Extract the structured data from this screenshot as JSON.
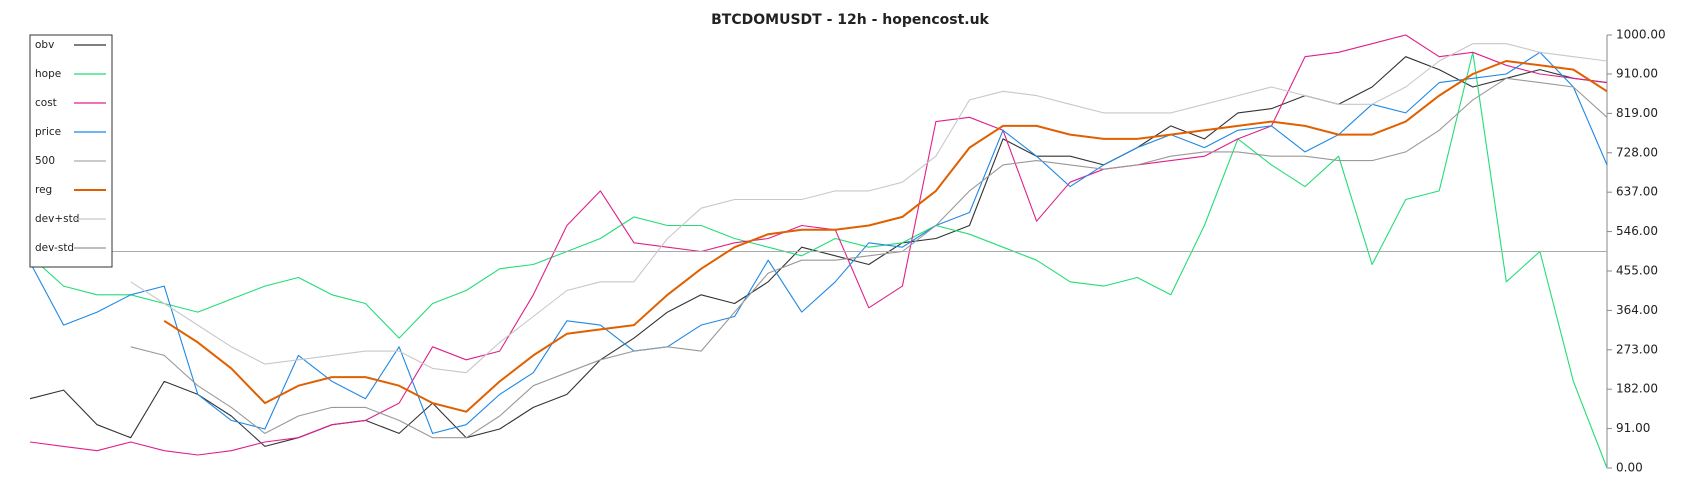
{
  "chart_data": {
    "type": "line",
    "title": "BTCDOMUSDT - 12h - hopencost.uk",
    "categories": [
      null,
      null,
      null,
      null,
      null,
      null,
      null,
      null,
      null,
      null,
      null,
      null,
      null,
      null,
      null,
      null,
      null,
      null,
      null,
      null,
      null,
      null,
      null,
      null,
      null,
      null,
      null,
      null,
      null,
      null,
      null,
      null,
      null,
      null,
      null,
      null,
      null,
      null,
      null,
      null,
      null,
      null,
      null,
      null,
      null,
      null,
      null,
      null
    ],
    "ylim": [
      0,
      1000
    ],
    "yticks": [
      {
        "value": 0,
        "label": "0.00"
      },
      {
        "value": 91,
        "label": "91.00"
      },
      {
        "value": 182,
        "label": "182.00"
      },
      {
        "value": 273,
        "label": "273.00"
      },
      {
        "value": 364,
        "label": "364.00"
      },
      {
        "value": 455,
        "label": "455.00"
      },
      {
        "value": 546,
        "label": "546.00"
      },
      {
        "value": 637,
        "label": "637.00"
      },
      {
        "value": 728,
        "label": "728.00"
      },
      {
        "value": 819,
        "label": "819.00"
      },
      {
        "value": 910,
        "label": "910.00"
      },
      {
        "value": 1000,
        "label": "1000.00"
      }
    ],
    "y_axis_side": "right",
    "legend": "upper left",
    "series": [
      {
        "name": "obv",
        "color": "#333333",
        "values": [
          160,
          180,
          100,
          70,
          200,
          170,
          120,
          50,
          70,
          100,
          110,
          80,
          150,
          70,
          90,
          140,
          170,
          250,
          300,
          360,
          400,
          380,
          430,
          510,
          490,
          470,
          520,
          530,
          560,
          760,
          720,
          720,
          700,
          740,
          790,
          760,
          820,
          830,
          860,
          840,
          880,
          950,
          920,
          880,
          900,
          920,
          900,
          890
        ]
      },
      {
        "name": "hope",
        "color": "#22dd77",
        "values": [
          490,
          420,
          400,
          400,
          380,
          360,
          390,
          420,
          440,
          400,
          380,
          300,
          380,
          410,
          460,
          470,
          500,
          530,
          580,
          560,
          560,
          530,
          510,
          490,
          530,
          510,
          520,
          560,
          540,
          510,
          480,
          430,
          420,
          440,
          400,
          560,
          760,
          700,
          650,
          720,
          470,
          620,
          640,
          960,
          430,
          500,
          200,
          0
        ]
      },
      {
        "name": "cost",
        "color": "#e0208a",
        "values": [
          60,
          50,
          40,
          60,
          40,
          30,
          40,
          60,
          70,
          100,
          110,
          150,
          280,
          250,
          270,
          400,
          560,
          640,
          520,
          510,
          500,
          520,
          530,
          560,
          550,
          370,
          420,
          800,
          810,
          780,
          570,
          660,
          690,
          700,
          710,
          720,
          760,
          790,
          950,
          960,
          980,
          1000,
          950,
          960,
          930,
          910,
          900,
          890
        ]
      },
      {
        "name": "price",
        "color": "#1e88e5",
        "values": [
          475,
          330,
          360,
          400,
          420,
          170,
          110,
          90,
          260,
          200,
          160,
          280,
          80,
          100,
          170,
          220,
          340,
          330,
          270,
          280,
          330,
          350,
          480,
          360,
          430,
          520,
          510,
          560,
          590,
          780,
          720,
          650,
          700,
          740,
          770,
          740,
          780,
          790,
          730,
          770,
          840,
          820,
          890,
          900,
          910,
          960,
          880,
          700
        ]
      },
      {
        "name": "500",
        "color": "#aaaaaa",
        "values": [
          500,
          500,
          500,
          500,
          500,
          500,
          500,
          500,
          500,
          500,
          500,
          500,
          500,
          500,
          500,
          500,
          500,
          500,
          500,
          500,
          500,
          500,
          500,
          500,
          500,
          500,
          500,
          500,
          500,
          500,
          500,
          500,
          500,
          500,
          500,
          500,
          500,
          500,
          500,
          500,
          500,
          500,
          500,
          500,
          500,
          500,
          500,
          500
        ]
      },
      {
        "name": "reg",
        "color": "#e06000",
        "width": 2,
        "values": [
          null,
          null,
          null,
          null,
          340,
          290,
          230,
          150,
          190,
          210,
          210,
          190,
          150,
          130,
          200,
          260,
          310,
          320,
          330,
          400,
          460,
          510,
          540,
          550,
          550,
          560,
          580,
          640,
          740,
          790,
          790,
          770,
          760,
          760,
          770,
          780,
          790,
          800,
          790,
          770,
          770,
          800,
          860,
          910,
          940,
          930,
          920,
          870
        ]
      },
      {
        "name": "dev+std",
        "color": "#c8c8c8",
        "values": [
          null,
          null,
          null,
          430,
          380,
          330,
          280,
          240,
          250,
          260,
          270,
          270,
          230,
          220,
          290,
          350,
          410,
          430,
          430,
          530,
          600,
          620,
          620,
          620,
          640,
          640,
          660,
          720,
          850,
          870,
          860,
          840,
          820,
          820,
          820,
          840,
          860,
          880,
          860,
          840,
          840,
          880,
          940,
          980,
          980,
          960,
          950,
          940
        ]
      },
      {
        "name": "dev-std",
        "color": "#999999",
        "values": [
          null,
          null,
          null,
          280,
          260,
          190,
          140,
          80,
          120,
          140,
          140,
          110,
          70,
          70,
          120,
          190,
          220,
          250,
          270,
          280,
          270,
          360,
          450,
          480,
          480,
          490,
          500,
          560,
          640,
          700,
          710,
          700,
          690,
          700,
          720,
          730,
          730,
          720,
          720,
          710,
          710,
          730,
          780,
          850,
          900,
          890,
          880,
          810
        ]
      }
    ]
  }
}
